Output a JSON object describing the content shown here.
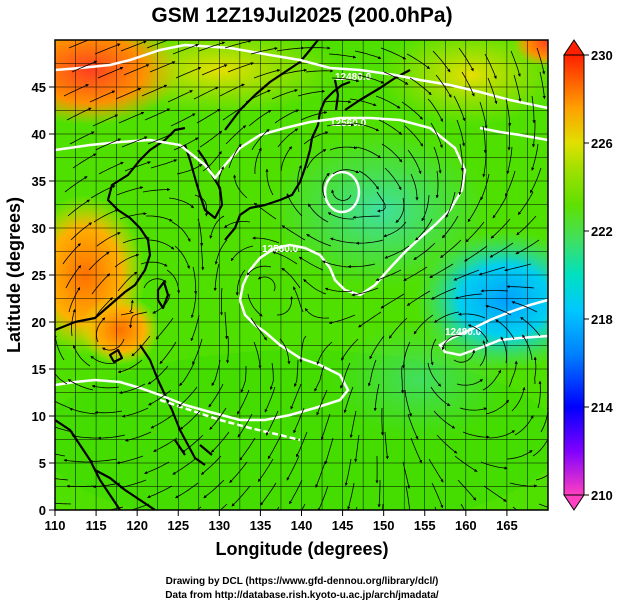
{
  "title": "GSM 12Z19Jul2025 (200.0hPa)",
  "xlabel": "Longitude (degrees)",
  "ylabel": "Latitude  (degrees)",
  "xticks": [
    110,
    115,
    120,
    125,
    130,
    135,
    140,
    145,
    150,
    155,
    160,
    165
  ],
  "yticks": [
    0,
    5,
    10,
    15,
    20,
    25,
    30,
    35,
    40,
    45
  ],
  "xlim": [
    110,
    170
  ],
  "ylim": [
    0,
    50
  ],
  "colorbar": {
    "ticks": [
      230,
      226,
      222,
      218,
      214,
      210
    ],
    "range": [
      210,
      230
    ],
    "colors": [
      "#ff40c0",
      "#8000ff",
      "#0000ff",
      "#0080ff",
      "#00c8ff",
      "#00e0c0",
      "#40e060",
      "#60e000",
      "#a0e000",
      "#e0e000",
      "#ffa000",
      "#ff6000",
      "#ff2000"
    ]
  },
  "contour_labels": [
    "12480.0",
    "12560.0",
    "12560.0",
    "12480.0"
  ],
  "credits": {
    "line1": "Drawing by DCL (https://www.gfd-dennou.org/library/dcl/)",
    "line2": "Data from http://database.rish.kyoto-u.ac.jp/arch/jmadata/"
  }
}
